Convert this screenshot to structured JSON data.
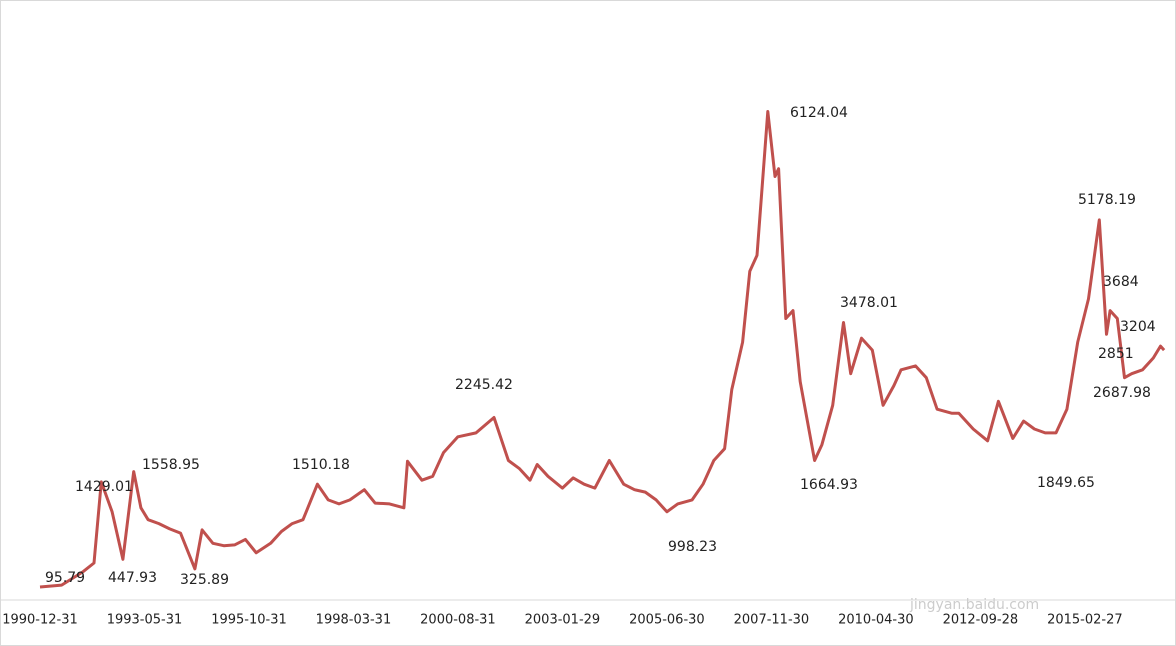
{
  "chart_data": {
    "type": "line",
    "x": [
      "1990-12",
      "1991-06",
      "1991-12",
      "1992-03",
      "1992-05",
      "1992-08",
      "1992-11",
      "1993-02",
      "1993-04",
      "1993-06",
      "1993-09",
      "1993-12",
      "1994-03",
      "1994-07",
      "1994-09",
      "1994-12",
      "1995-03",
      "1995-06",
      "1995-09",
      "1995-12",
      "1996-04",
      "1996-07",
      "1996-10",
      "1997-01",
      "1997-05",
      "1997-08",
      "1997-11",
      "1998-02",
      "1998-06",
      "1998-09",
      "1999-01",
      "1999-05",
      "1999-06",
      "1999-10",
      "2000-01",
      "2000-04",
      "2000-08",
      "2001-01",
      "2001-06",
      "2001-10",
      "2002-01",
      "2002-04",
      "2002-06",
      "2002-09",
      "2003-01",
      "2003-04",
      "2003-07",
      "2003-10",
      "2004-02",
      "2004-06",
      "2004-09",
      "2004-12",
      "2005-03",
      "2005-06",
      "2005-09",
      "2006-01",
      "2006-04",
      "2006-07",
      "2006-10",
      "2006-12",
      "2007-03",
      "2007-05",
      "2007-07",
      "2007-10",
      "2007-12",
      "2008-01",
      "2008-03",
      "2008-05",
      "2008-07",
      "2008-09",
      "2008-11",
      "2009-01",
      "2009-04",
      "2009-07",
      "2009-09",
      "2009-12",
      "2010-03",
      "2010-06",
      "2010-09",
      "2010-11",
      "2011-03",
      "2011-06",
      "2011-09",
      "2012-01",
      "2012-03",
      "2012-07",
      "2012-11",
      "2013-02",
      "2013-06",
      "2013-09",
      "2013-12",
      "2014-03",
      "2014-06",
      "2014-09",
      "2014-12",
      "2015-03",
      "2015-06",
      "2015-08",
      "2015-09",
      "2015-11",
      "2016-01",
      "2016-03",
      "2016-06",
      "2016-09",
      "2016-11",
      "2016-12"
    ],
    "series": [
      {
        "color": "#c0504d",
        "values": [
          96,
          120,
          292,
          400,
          1429,
          1050,
          448,
          1559,
          1100,
          950,
          900,
          833,
          780,
          326,
          820,
          650,
          620,
          630,
          700,
          530,
          650,
          800,
          900,
          950,
          1400,
          1200,
          1150,
          1200,
          1330,
          1160,
          1150,
          1100,
          1690,
          1450,
          1500,
          1800,
          2000,
          2050,
          2245,
          1700,
          1600,
          1450,
          1650,
          1500,
          1350,
          1480,
          1400,
          1350,
          1700,
          1400,
          1330,
          1300,
          1200,
          1050,
          1150,
          1200,
          1400,
          1700,
          1850,
          2600,
          3200,
          4100,
          4300,
          6124,
          5300,
          5400,
          3500,
          3600,
          2700,
          2200,
          1700,
          1900,
          2400,
          3450,
          2800,
          3250,
          3100,
          2400,
          2650,
          2850,
          2900,
          2750,
          2350,
          2300,
          2300,
          2100,
          1950,
          2450,
          1980,
          2200,
          2100,
          2050,
          2050,
          2350,
          3200,
          3750,
          4750,
          3300,
          3600,
          3500,
          2750,
          2800,
          2850,
          3000,
          3150,
          3100
        ]
      }
    ],
    "xticks": [
      "1990-12-31",
      "1993-05-31",
      "1995-10-31",
      "1998-03-31",
      "2000-08-31",
      "2003-01-29",
      "2005-06-30",
      "2007-11-30",
      "2010-04-30",
      "2012-09-28",
      "2015-02-27"
    ],
    "ylim": [
      0,
      6600
    ],
    "annotations": [
      "95.79",
      "1429.01",
      "447.93",
      "1558.95",
      "325.89",
      "1510.18",
      "2245.42",
      "998.23",
      "6124.04",
      "1664.93",
      "3478.01",
      "1849.65",
      "5178.19",
      "3684",
      "3204",
      "2851",
      "2687.98"
    ],
    "watermark": "jingyan.baidu.com"
  }
}
